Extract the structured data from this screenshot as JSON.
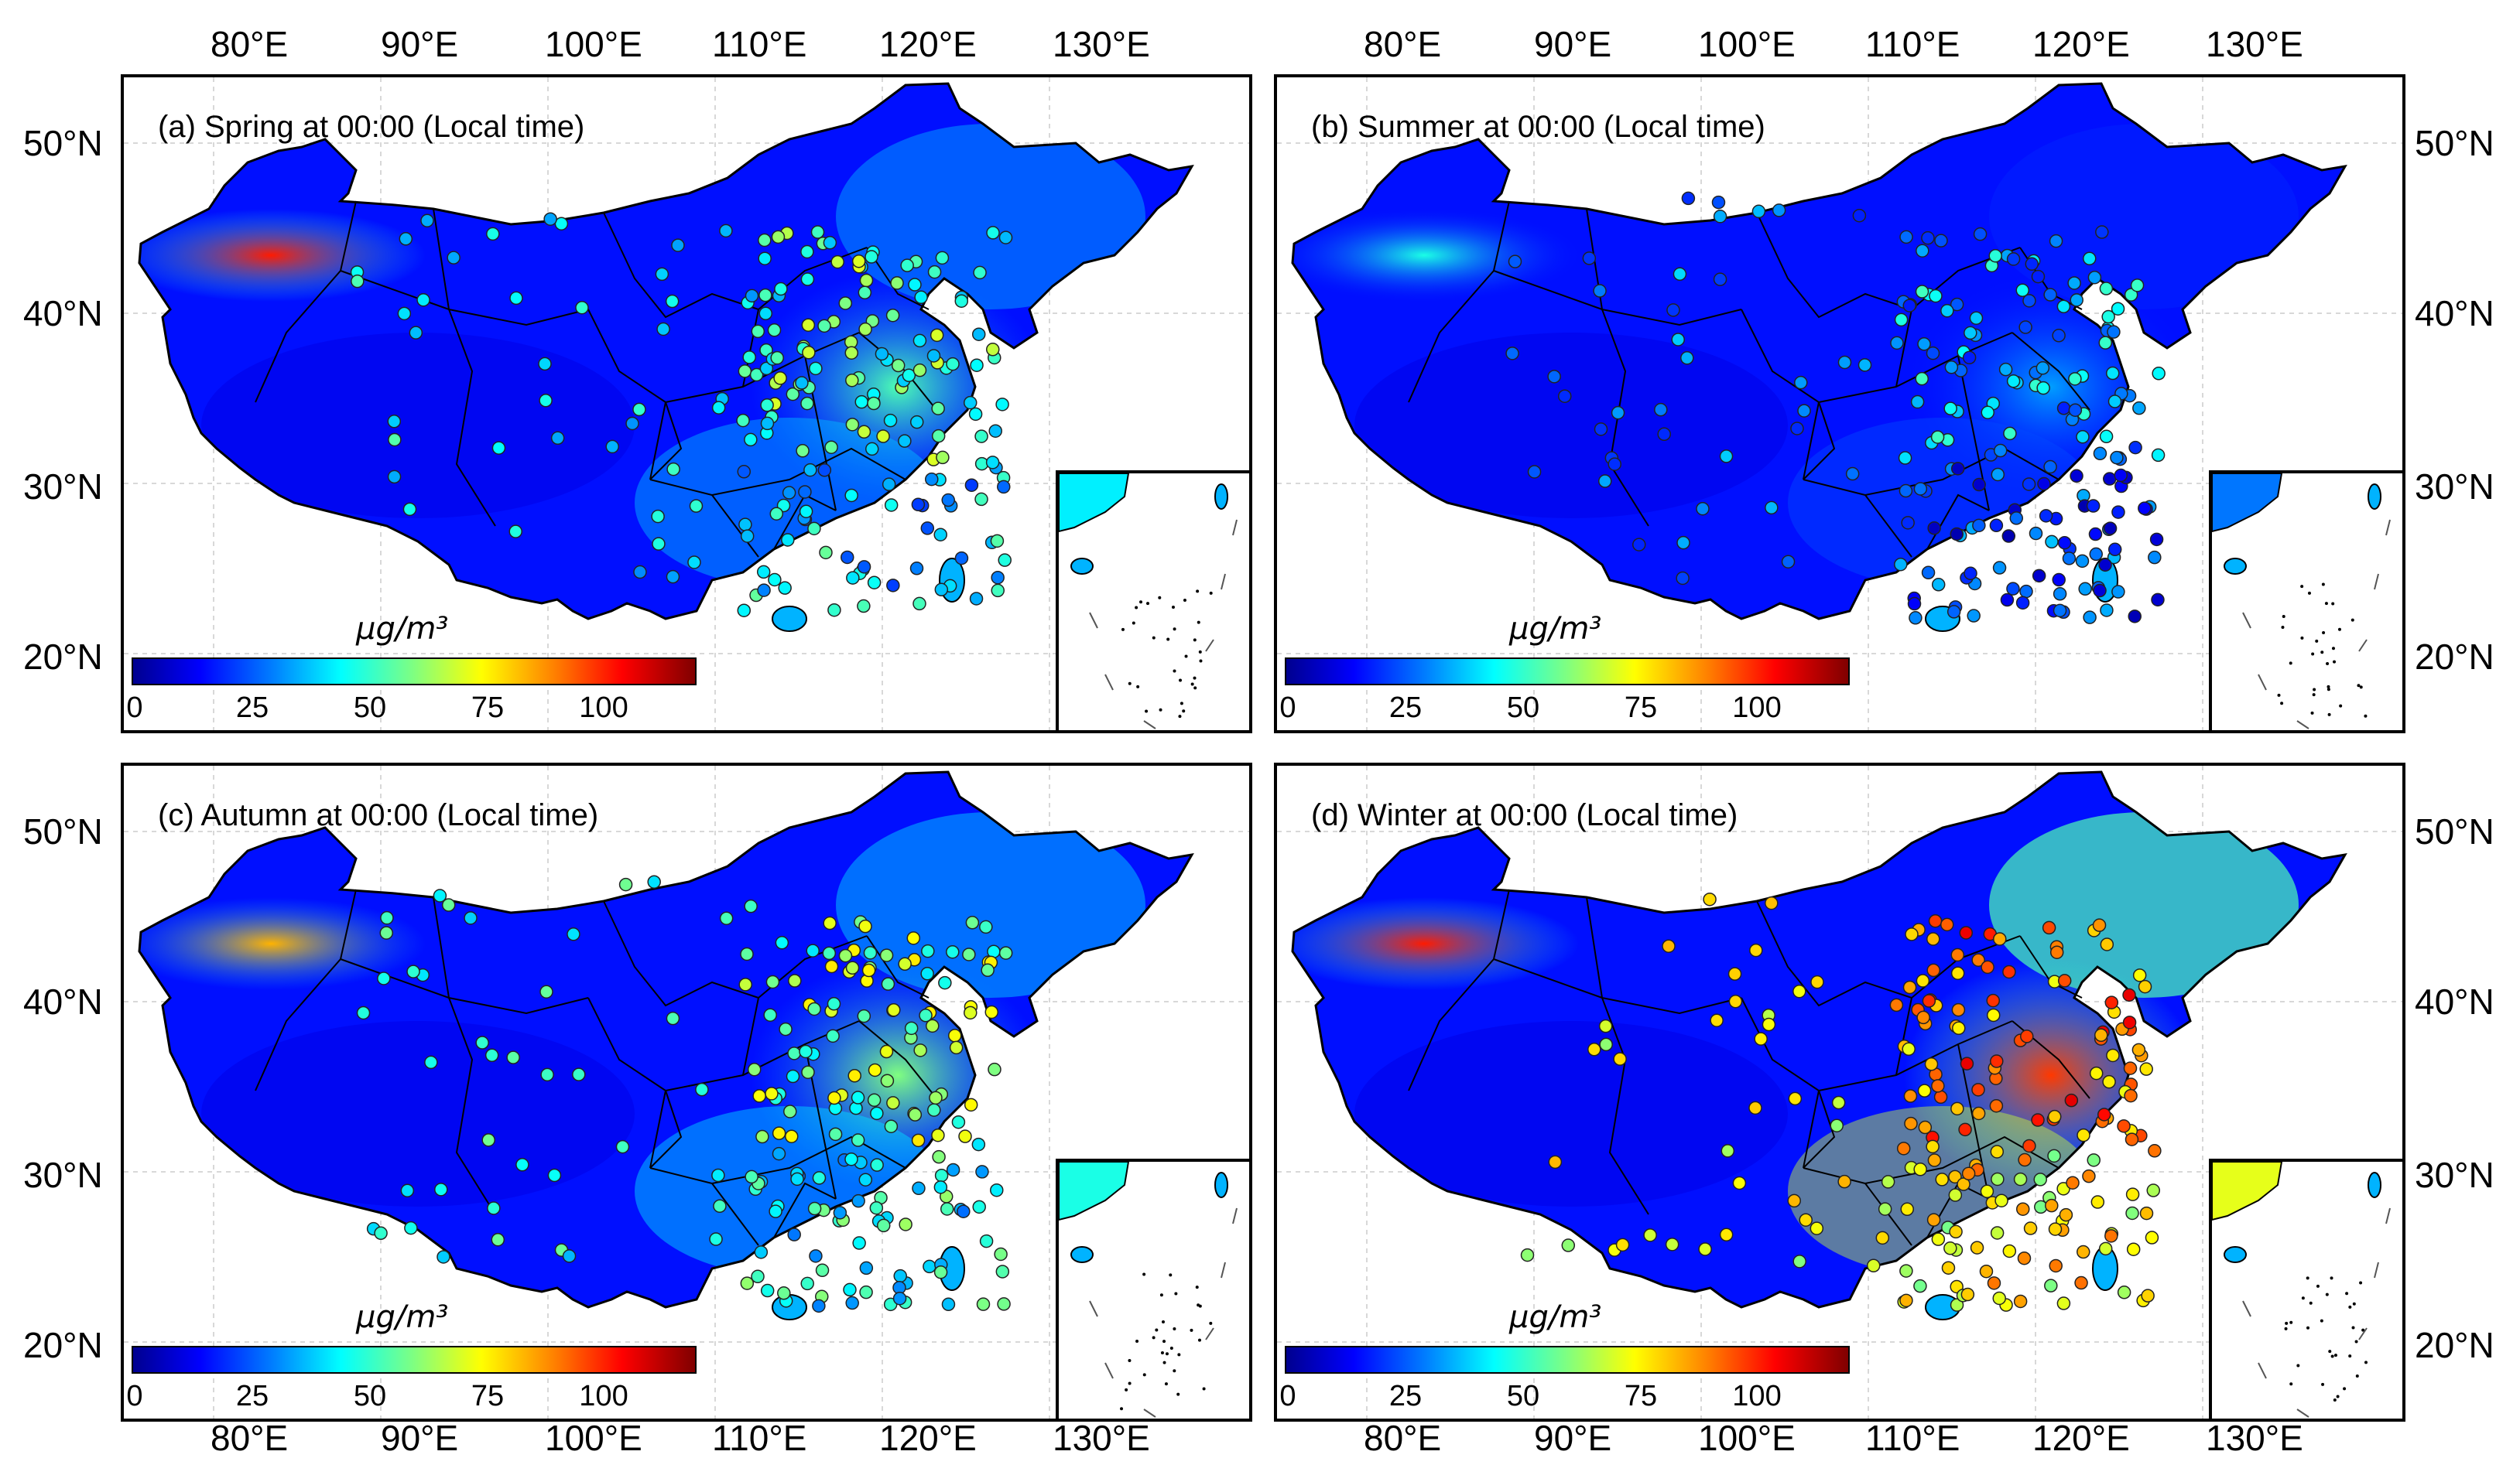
{
  "lon_ticks": [
    "80°E",
    "90°E",
    "100°E",
    "110°E",
    "120°E",
    "130°E"
  ],
  "lat_ticks": [
    "50°N",
    "40°N",
    "30°N",
    "20°N"
  ],
  "colorbar": {
    "unit_label": "μg/m³",
    "ticks": [
      "0",
      "25",
      "50",
      "75",
      "100"
    ],
    "range": [
      0,
      120
    ],
    "colors": [
      "#00008f",
      "#0000ff",
      "#0080ff",
      "#00ffff",
      "#80ff80",
      "#ffff00",
      "#ff8000",
      "#ff0000",
      "#800000"
    ]
  },
  "panels": [
    {
      "id": "a",
      "title": "(a) Spring at 00:00 (Local time)",
      "season": "spring",
      "north_china_level": 0.45,
      "xinjiang_level": 0.85,
      "site_level": 0.45
    },
    {
      "id": "b",
      "title": "(b) Summer at 00:00 (Local time)",
      "season": "summer",
      "north_china_level": 0.28,
      "xinjiang_level": 0.4,
      "site_level": 0.3
    },
    {
      "id": "c",
      "title": "(c) Autumn at 00:00 (Local time)",
      "season": "autumn",
      "north_china_level": 0.5,
      "xinjiang_level": 0.7,
      "site_level": 0.5
    },
    {
      "id": "d",
      "title": "(d) Winter at 00:00 (Local time)",
      "season": "winter",
      "north_china_level": 0.82,
      "xinjiang_level": 0.85,
      "site_level": 0.75
    }
  ]
}
